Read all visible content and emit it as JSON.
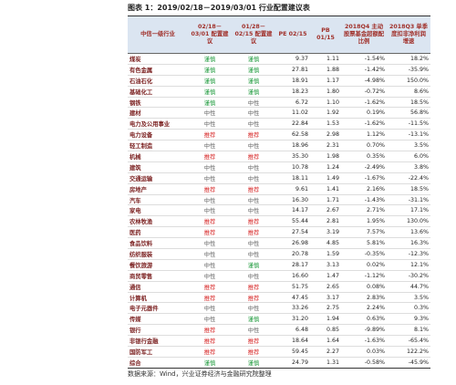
{
  "title": "图表 1：2019/02/18－2019/03/01 行业配置建议表",
  "table": {
    "header": [
      "中信一级行业",
      "02/18－03/01 配置建议",
      "01/28－02/15 配置建议",
      "PE 02/15",
      "PB 01/15",
      "2018Q4 主动股票基金超额配比例",
      "2018Q3 单季度扣非净利润增速"
    ],
    "rating_colors": {
      "谨慎": "#1e9a3c",
      "中性": "#666666",
      "推荐": "#d62424"
    },
    "rows": [
      [
        "煤炭",
        "谨慎",
        "谨慎",
        "9.37",
        "1.11",
        "-1.54%",
        "18.2%"
      ],
      [
        "有色金属",
        "谨慎",
        "谨慎",
        "27.81",
        "1.88",
        "-1.42%",
        "-35.9%"
      ],
      [
        "石油石化",
        "谨慎",
        "谨慎",
        "18.91",
        "1.17",
        "-4.98%",
        "150.0%"
      ],
      [
        "基础化工",
        "谨慎",
        "谨慎",
        "18.23",
        "1.80",
        "-0.72%",
        "8.6%"
      ],
      [
        "钢铁",
        "谨慎",
        "中性",
        "6.72",
        "1.10",
        "-1.62%",
        "18.5%"
      ],
      [
        "建材",
        "中性",
        "中性",
        "11.02",
        "1.92",
        "0.19%",
        "56.8%"
      ],
      [
        "电力及公用事业",
        "中性",
        "中性",
        "22.84",
        "1.53",
        "-1.62%",
        "-11.5%"
      ],
      [
        "电力设备",
        "推荐",
        "推荐",
        "62.58",
        "2.98",
        "1.12%",
        "-13.1%"
      ],
      [
        "轻工制造",
        "中性",
        "中性",
        "18.96",
        "2.31",
        "0.70%",
        "3.5%"
      ],
      [
        "机械",
        "推荐",
        "推荐",
        "35.30",
        "1.98",
        "0.35%",
        "6.0%"
      ],
      [
        "建筑",
        "中性",
        "中性",
        "10.78",
        "1.24",
        "-2.49%",
        "3.8%"
      ],
      [
        "交通运输",
        "中性",
        "中性",
        "18.11",
        "1.49",
        "-1.67%",
        "-22.4%"
      ],
      [
        "房地产",
        "推荐",
        "推荐",
        "9.61",
        "1.41",
        "2.16%",
        "18.5%"
      ],
      [
        "汽车",
        "中性",
        "中性",
        "16.30",
        "1.71",
        "-1.43%",
        "-31.1%"
      ],
      [
        "家电",
        "中性",
        "中性",
        "14.17",
        "2.67",
        "2.71%",
        "17.1%"
      ],
      [
        "农林牧渔",
        "推荐",
        "推荐",
        "55.44",
        "2.81",
        "1.95%",
        "130.0%"
      ],
      [
        "医药",
        "推荐",
        "推荐",
        "27.54",
        "3.19",
        "7.57%",
        "13.6%"
      ],
      [
        "食品饮料",
        "中性",
        "中性",
        "26.98",
        "4.85",
        "5.81%",
        "16.3%"
      ],
      [
        "纺织服装",
        "中性",
        "中性",
        "20.78",
        "1.59",
        "-0.35%",
        "-12.3%"
      ],
      [
        "餐饮旅游",
        "中性",
        "谨慎",
        "28.17",
        "3.13",
        "0.02%",
        "12.1%"
      ],
      [
        "商贸零售",
        "中性",
        "中性",
        "16.60",
        "1.47",
        "-1.12%",
        "-30.2%"
      ],
      [
        "通信",
        "推荐",
        "推荐",
        "51.75",
        "2.65",
        "0.08%",
        "44.7%"
      ],
      [
        "计算机",
        "推荐",
        "推荐",
        "47.45",
        "3.17",
        "2.83%",
        "3.5%"
      ],
      [
        "电子元器件",
        "中性",
        "中性",
        "33.26",
        "2.75",
        "2.24%",
        "0.3%"
      ],
      [
        "传媒",
        "中性",
        "谨慎",
        "31.20",
        "1.94",
        "0.63%",
        "9.3%"
      ],
      [
        "银行",
        "推荐",
        "中性",
        "6.48",
        "0.85",
        "-9.89%",
        "8.1%"
      ],
      [
        "非银行金融",
        "推荐",
        "推荐",
        "18.64",
        "1.64",
        "-1.63%",
        "-65.4%"
      ],
      [
        "国防军工",
        "推荐",
        "推荐",
        "59.45",
        "2.27",
        "0.03%",
        "122.2%"
      ],
      [
        "综合",
        "谨慎",
        "谨慎",
        "24.79",
        "1.31",
        "-0.58%",
        "-45.9%"
      ]
    ]
  },
  "source": "数据来源：Wind，兴业证券经济与金融研究院整理"
}
